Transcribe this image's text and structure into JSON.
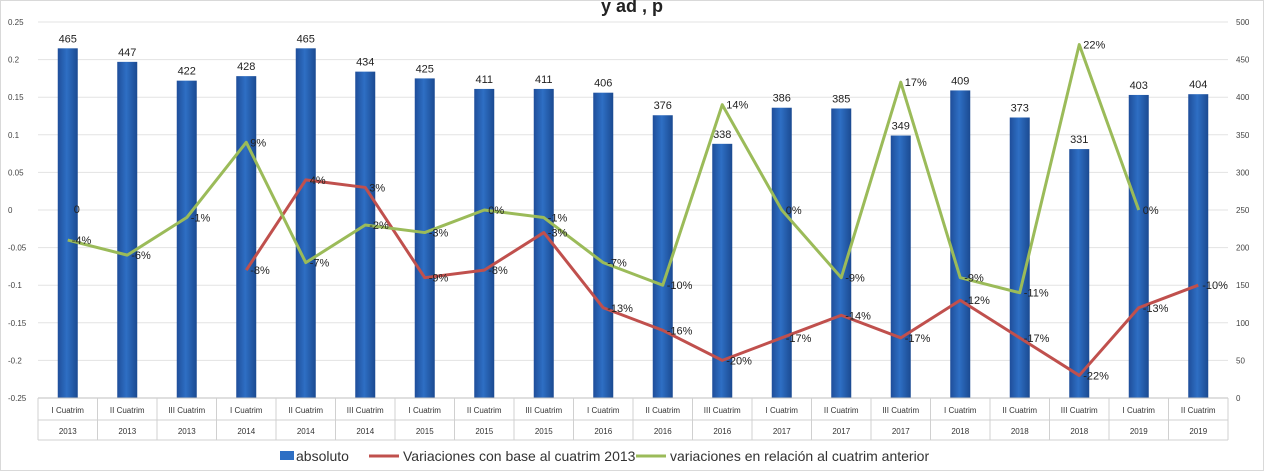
{
  "chart_data": {
    "type": "bar",
    "title": "y ad    , p",
    "categories": [
      {
        "label": "I Cuatrim",
        "year": "2013"
      },
      {
        "label": "II Cuatrim",
        "year": "2013"
      },
      {
        "label": "III Cuatrim",
        "year": "2013"
      },
      {
        "label": "I Cuatrim",
        "year": "2014"
      },
      {
        "label": "II Cuatrim",
        "year": "2014"
      },
      {
        "label": "III Cuatrim",
        "year": "2014"
      },
      {
        "label": "I Cuatrim",
        "year": "2015"
      },
      {
        "label": "II Cuatrim",
        "year": "2015"
      },
      {
        "label": "III Cuatrim",
        "year": "2015"
      },
      {
        "label": "I Cuatrim",
        "year": "2016"
      },
      {
        "label": "II Cuatrim",
        "year": "2016"
      },
      {
        "label": "III Cuatrim",
        "year": "2016"
      },
      {
        "label": "I Cuatrim",
        "year": "2017"
      },
      {
        "label": "II Cuatrim",
        "year": "2017"
      },
      {
        "label": "III Cuatrim",
        "year": "2017"
      },
      {
        "label": "I Cuatrim",
        "year": "2018"
      },
      {
        "label": "II Cuatrim",
        "year": "2018"
      },
      {
        "label": "III Cuatrim",
        "year": "2018"
      },
      {
        "label": "I Cuatrim",
        "year": "2019"
      },
      {
        "label": "II Cuatrim",
        "year": "2019"
      }
    ],
    "left_axis": {
      "min": -0.25,
      "max": 0.25,
      "step": 0.05,
      "ticks": [
        "-0.25",
        "-0.2",
        "-0.15",
        "-0.1",
        "-0.05",
        "0",
        "0.05",
        "0.1",
        "0.15",
        "0.2",
        "0.25"
      ]
    },
    "right_axis": {
      "min": 0,
      "max": 500,
      "step": 50,
      "ticks": [
        "0",
        "50",
        "100",
        "150",
        "200",
        "250",
        "300",
        "350",
        "400",
        "450",
        "500"
      ]
    },
    "series": [
      {
        "name": "absoluto",
        "kind": "bar",
        "axis": "right",
        "color": "#2E6FC4",
        "values": [
          465,
          447,
          422,
          428,
          465,
          434,
          425,
          411,
          411,
          406,
          376,
          338,
          386,
          385,
          349,
          409,
          373,
          331,
          403,
          404
        ],
        "labels": [
          "465",
          "447",
          "422",
          "428",
          "465",
          "434",
          "425",
          "411",
          "411",
          "406",
          "376",
          "338",
          "386",
          "385",
          "349",
          "409",
          "373",
          "331",
          "403",
          "404"
        ]
      },
      {
        "name": "Variaciones con base al cuatrim 2013",
        "kind": "line",
        "axis": "left",
        "color": "#C0504D",
        "values": [
          null,
          null,
          null,
          -0.08,
          0.04,
          0.03,
          -0.09,
          -0.08,
          -0.03,
          -0.13,
          -0.16,
          -0.2,
          -0.17,
          -0.14,
          -0.17,
          -0.12,
          -0.17,
          -0.22,
          -0.13,
          -0.1
        ],
        "labels": [
          null,
          null,
          null,
          "-8%",
          "4%",
          "3%",
          "-9%",
          "-8%",
          "-3%",
          "-13%",
          "-16%",
          "-20%",
          "-17%",
          "-14%",
          "-17%",
          "-12%",
          "-17%",
          "-22%",
          "-13%",
          "-10%"
        ]
      },
      {
        "name": "variaciones en relación al cuatrim anterior",
        "kind": "line",
        "axis": "left",
        "color": "#9BBB59",
        "values": [
          -0.04,
          -0.06,
          -0.01,
          0.09,
          -0.07,
          -0.02,
          -0.03,
          0.0,
          -0.01,
          -0.07,
          -0.1,
          0.14,
          0.0,
          -0.09,
          0.17,
          -0.09,
          -0.11,
          0.22,
          0.0,
          null
        ],
        "labels": [
          "-4%",
          "-6%",
          "-1%",
          "9%",
          "-7%",
          "-2%",
          "-3%",
          "0%",
          "-1%",
          "-7%",
          "-10%",
          "14%",
          "0%",
          "-9%",
          "17%",
          "-9%",
          "-11%",
          "22%",
          "0%",
          null
        ]
      }
    ],
    "extra_labels": [
      {
        "index": 0,
        "text": "0"
      }
    ],
    "legend_position": "bottom",
    "grid": true
  }
}
